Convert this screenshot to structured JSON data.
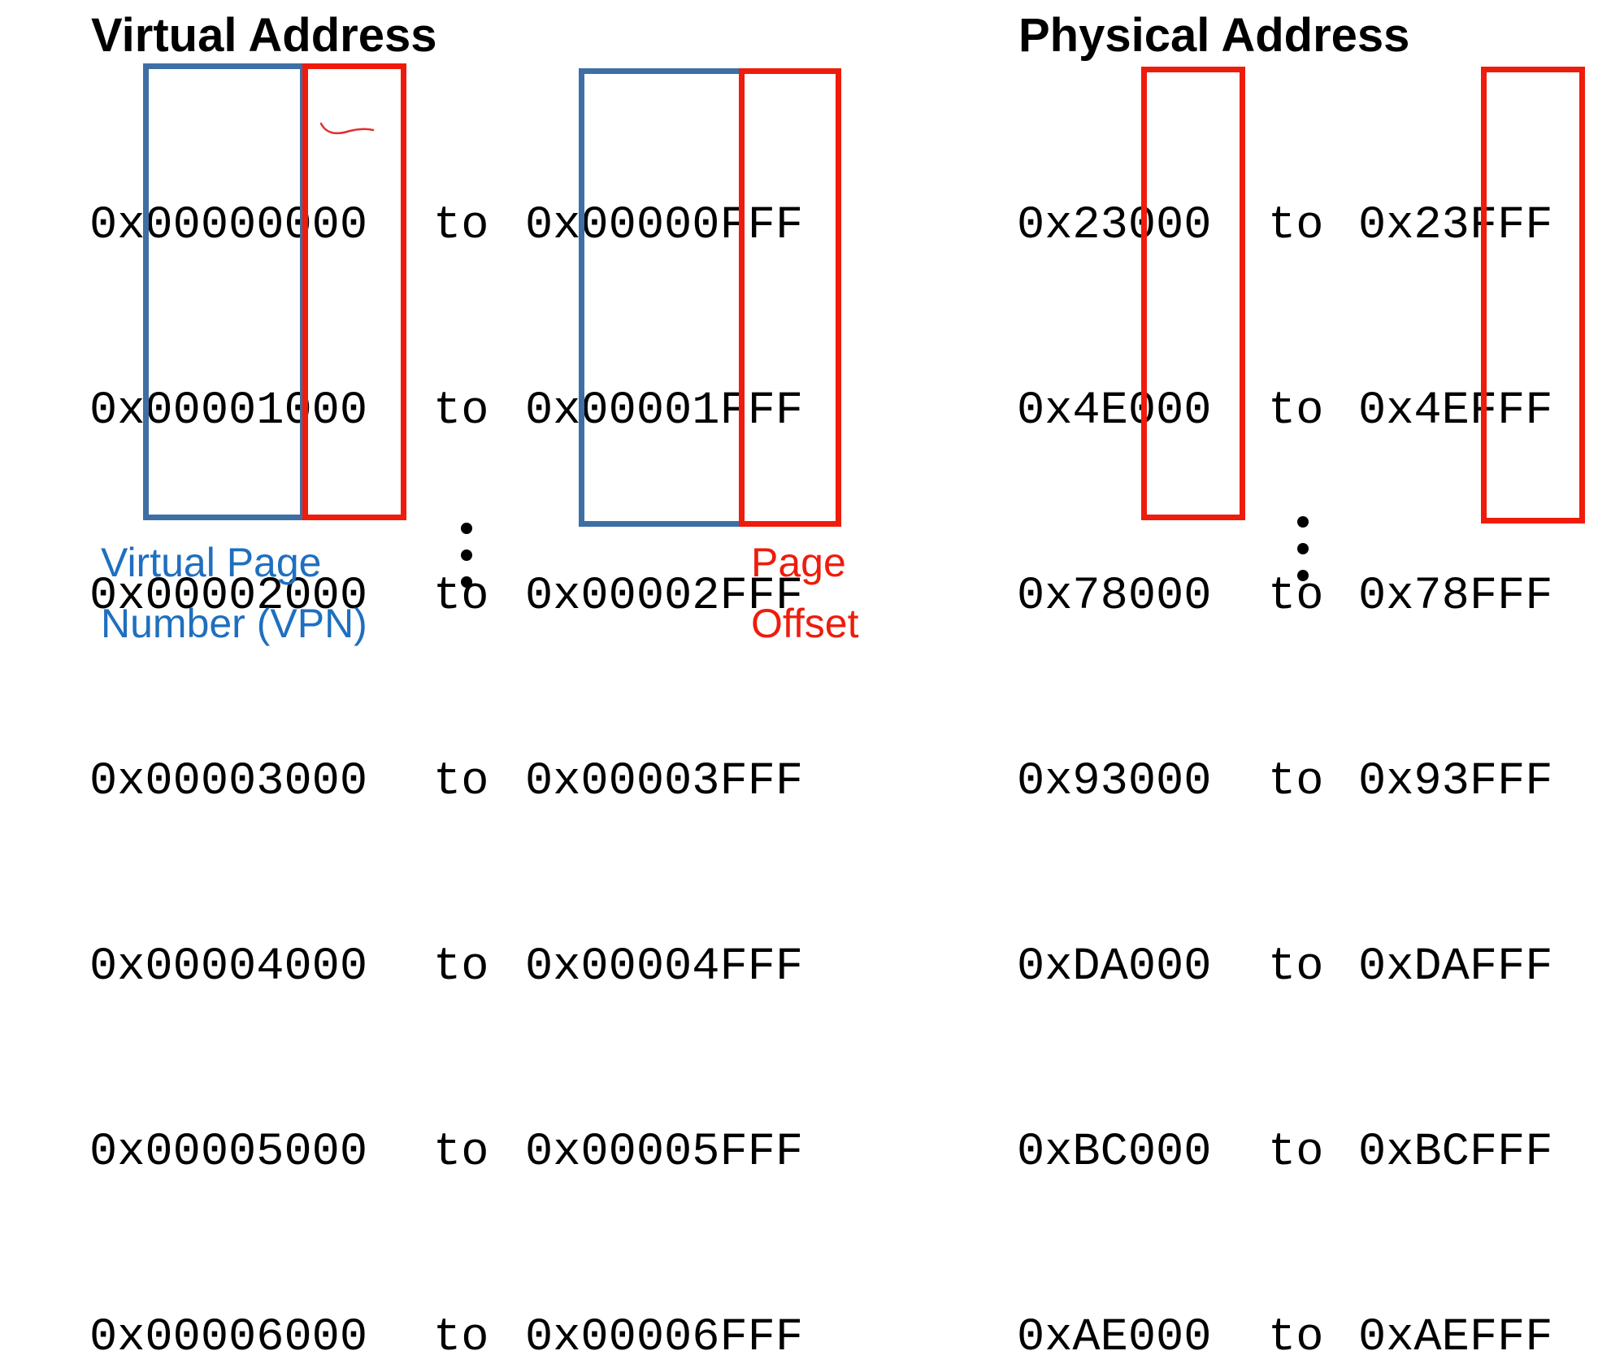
{
  "virtual": {
    "title": "Virtual Address",
    "rows": [
      {
        "start_prefix": "0x",
        "start_vpn": "00000",
        "start_offset": "000",
        "to": "to",
        "end_prefix": "0x",
        "end_vpn": "00000",
        "end_offset": "FFF"
      },
      {
        "start_prefix": "0x",
        "start_vpn": "00001",
        "start_offset": "000",
        "to": "to",
        "end_prefix": "0x",
        "end_vpn": "00001",
        "end_offset": "FFF"
      },
      {
        "start_prefix": "0x",
        "start_vpn": "00002",
        "start_offset": "000",
        "to": "to",
        "end_prefix": "0x",
        "end_vpn": "00002",
        "end_offset": "FFF"
      },
      {
        "start_prefix": "0x",
        "start_vpn": "00003",
        "start_offset": "000",
        "to": "to",
        "end_prefix": "0x",
        "end_vpn": "00003",
        "end_offset": "FFF"
      },
      {
        "start_prefix": "0x",
        "start_vpn": "00004",
        "start_offset": "000",
        "to": "to",
        "end_prefix": "0x",
        "end_vpn": "00004",
        "end_offset": "FFF"
      },
      {
        "start_prefix": "0x",
        "start_vpn": "00005",
        "start_offset": "000",
        "to": "to",
        "end_prefix": "0x",
        "end_vpn": "00005",
        "end_offset": "FFF"
      },
      {
        "start_prefix": "0x",
        "start_vpn": "00006",
        "start_offset": "000",
        "to": "to",
        "end_prefix": "0x",
        "end_vpn": "00006",
        "end_offset": "FFF"
      }
    ],
    "vpn_label_line1": "Virtual Page",
    "vpn_label_line2": "Number (VPN)",
    "offset_label_line1": "Page",
    "offset_label_line2": "Offset"
  },
  "physical": {
    "title": "Physical Address",
    "rows": [
      {
        "start_frame": "0x23",
        "start_offset": "000",
        "to": "to",
        "end_frame": "0x23",
        "end_offset": "FFF"
      },
      {
        "start_frame": "0x4E",
        "start_offset": "000",
        "to": "to",
        "end_frame": "0x4E",
        "end_offset": "FFF"
      },
      {
        "start_frame": "0x78",
        "start_offset": "000",
        "to": "to",
        "end_frame": "0x78",
        "end_offset": "FFF"
      },
      {
        "start_frame": "0x93",
        "start_offset": "000",
        "to": "to",
        "end_frame": "0x93",
        "end_offset": "FFF"
      },
      {
        "start_frame": "0xDA",
        "start_offset": "000",
        "to": "to",
        "end_frame": "0xDA",
        "end_offset": "FFF"
      },
      {
        "start_frame": "0xBC",
        "start_offset": "000",
        "to": "to",
        "end_frame": "0xBC",
        "end_offset": "FFF"
      },
      {
        "start_frame": "0xAE",
        "start_offset": "000",
        "to": "to",
        "end_frame": "0xAE",
        "end_offset": "FFF"
      }
    ]
  },
  "colors": {
    "vpn_box": "#3d6fa5",
    "offset_box": "#ee1c0c",
    "vpn_label": "#1f6fbf",
    "offset_label": "#ee1c0c",
    "annotation_stroke": "#e32c2c"
  },
  "icons": {
    "continuation": "vertical-ellipsis-icon",
    "annotation": "handwritten-underline-mark"
  }
}
